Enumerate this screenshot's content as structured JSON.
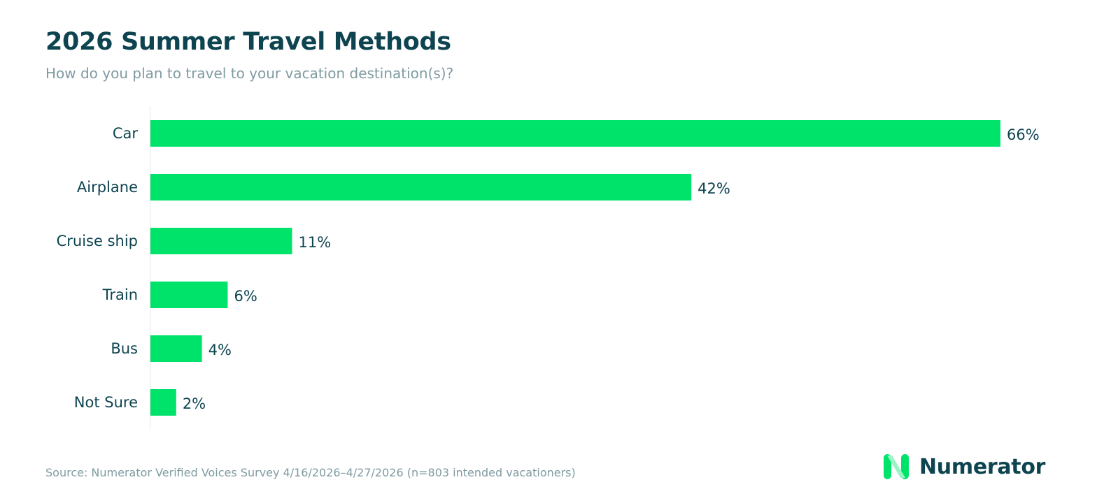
{
  "header": {
    "title": "2026 Summer Travel Methods",
    "subtitle": "How do you plan to travel to your vacation destination(s)?"
  },
  "footer": {
    "source": "Source: Numerator Verified Voices Survey 4/16/2026–4/27/2026 (n=803 intended vacationers)",
    "brand": "Numerator"
  },
  "colors": {
    "bar": "#00e36b",
    "text_dark": "#0d4450",
    "text_muted": "#7f9ba1",
    "axis": "#e4e9ea",
    "logo_primary": "#00e36b",
    "logo_secondary": "#9af5c4"
  },
  "logo_icon": "numerator-n-icon",
  "chart_data": {
    "type": "bar",
    "orientation": "horizontal",
    "title": "2026 Summer Travel Methods",
    "subtitle": "How do you plan to travel to your vacation destination(s)?",
    "categories": [
      "Car",
      "Airplane",
      "Cruise ship",
      "Train",
      "Bus",
      "Not Sure"
    ],
    "values": [
      66,
      42,
      11,
      6,
      4,
      2
    ],
    "value_labels": [
      "66%",
      "42%",
      "11%",
      "6%",
      "4%",
      "2%"
    ],
    "unit": "%",
    "xlim": [
      0,
      66
    ],
    "xlabel": "",
    "ylabel": "",
    "grid": false,
    "legend": false
  }
}
